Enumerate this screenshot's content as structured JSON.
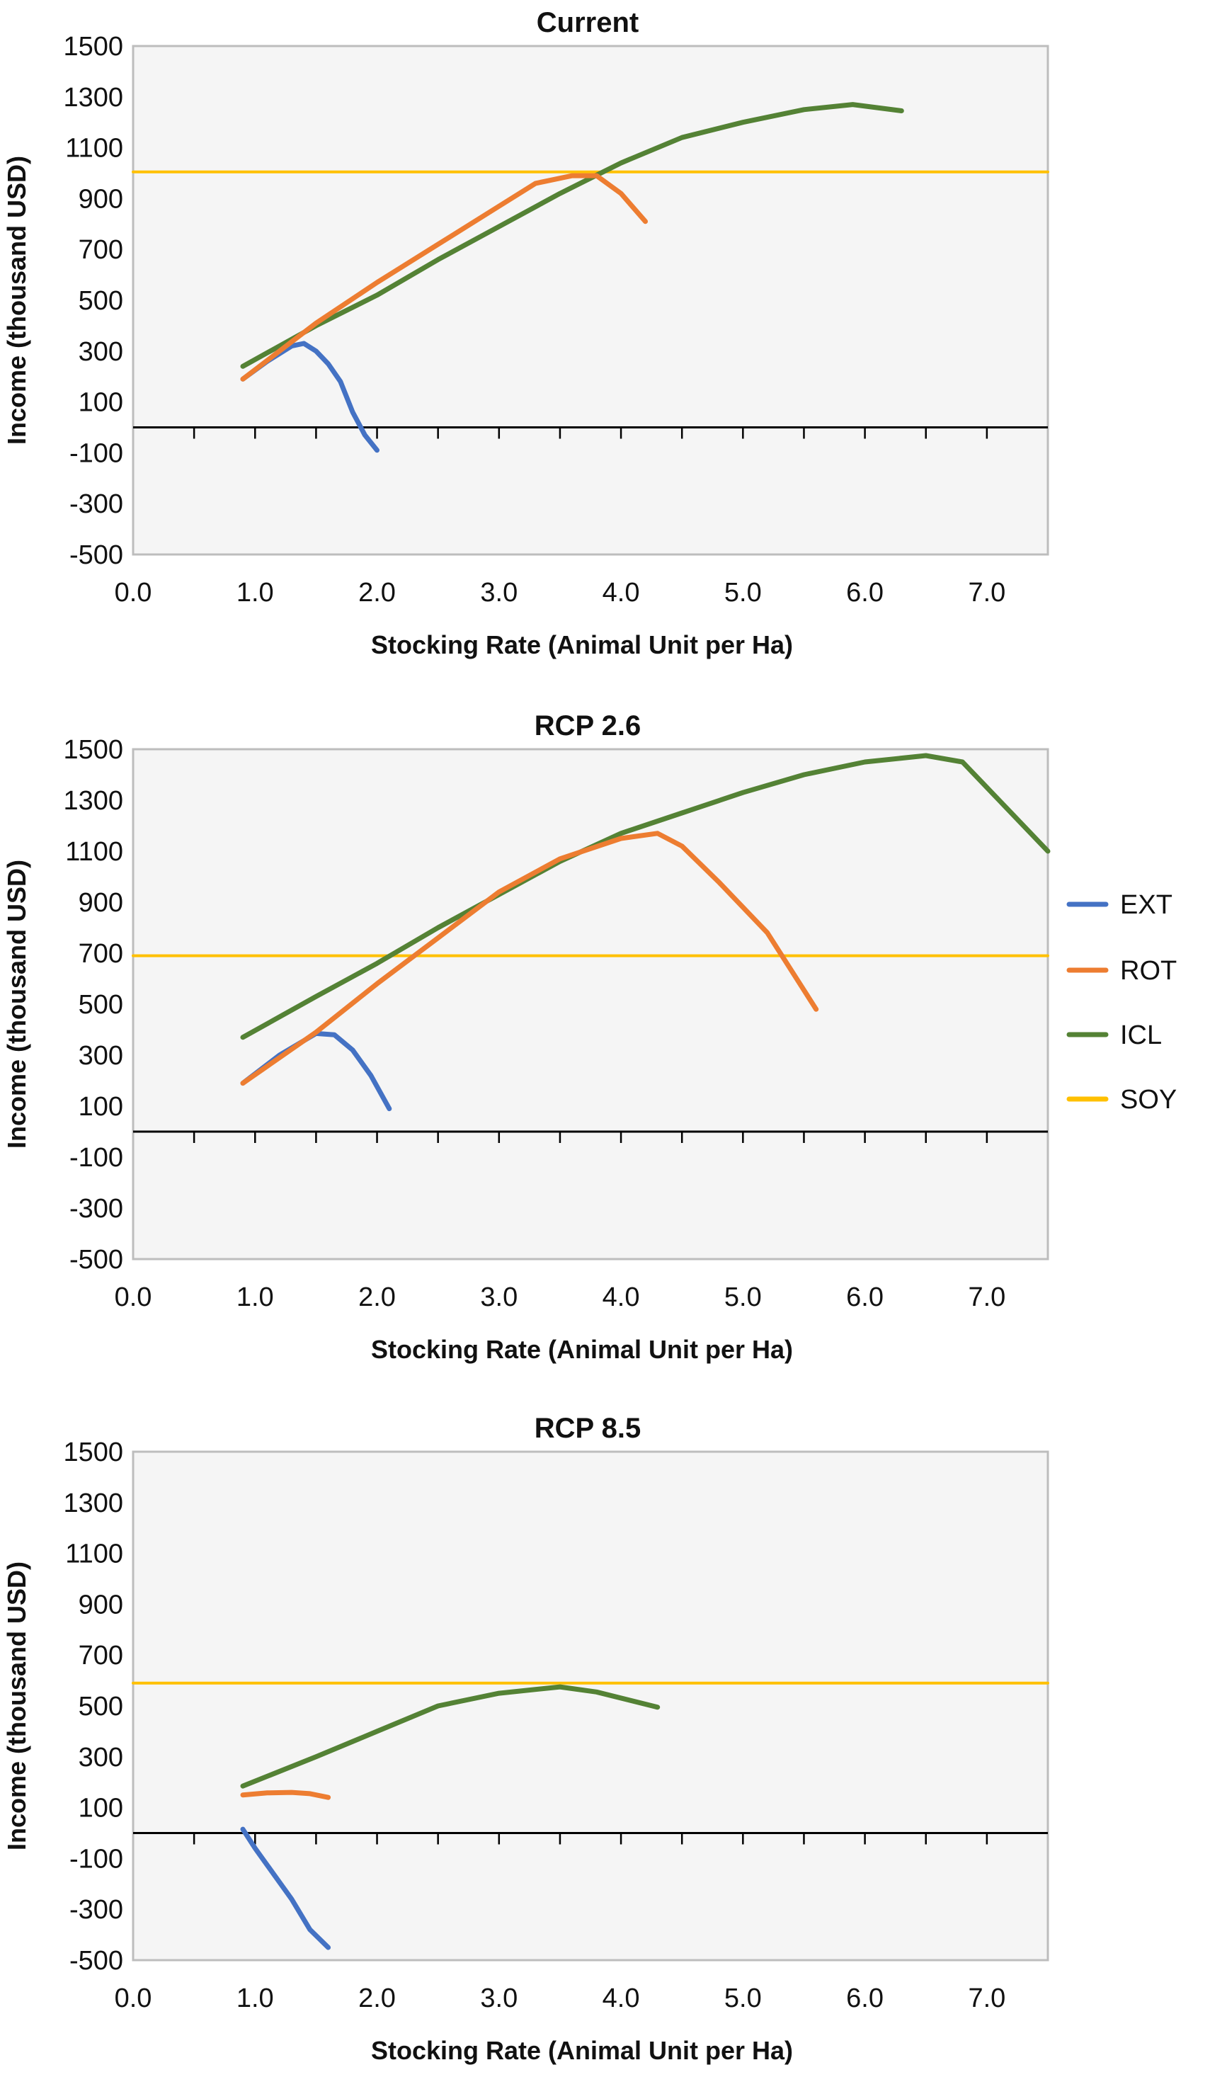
{
  "colors": {
    "plot_bg": "#f5f5f5",
    "plot_border": "#bdbdbd",
    "axis": "#000000",
    "EXT": "#4472C4",
    "ROT": "#ED7D31",
    "ICL": "#548235",
    "SOY": "#FFC000"
  },
  "legend": {
    "placement": "right",
    "items": [
      {
        "key": "EXT",
        "label": "EXT"
      },
      {
        "key": "ROT",
        "label": "ROT"
      },
      {
        "key": "ICL",
        "label": "ICL"
      },
      {
        "key": "SOY",
        "label": "SOY"
      }
    ]
  },
  "chart_data": [
    {
      "type": "line",
      "title": "Current",
      "xlabel": "Stocking Rate (Animal Unit per Ha)",
      "ylabel": "Income (thousand USD)",
      "xlim": [
        0,
        7.5
      ],
      "ylim": [
        -500,
        1500
      ],
      "xticks": [
        "0.0",
        "1.0",
        "2.0",
        "3.0",
        "4.0",
        "5.0",
        "6.0",
        "7.0"
      ],
      "yticks": [
        "1500",
        "1300",
        "1100",
        "900",
        "700",
        "500",
        "300",
        "100",
        "-100",
        "-300",
        "-500"
      ],
      "grid": false,
      "series": [
        {
          "name": "EXT",
          "x": [
            0.9,
            1.1,
            1.3,
            1.4,
            1.5,
            1.6,
            1.7,
            1.8,
            1.9,
            2.0
          ],
          "y": [
            190,
            260,
            320,
            330,
            300,
            250,
            180,
            60,
            -30,
            -90
          ]
        },
        {
          "name": "ROT",
          "x": [
            0.9,
            1.5,
            2.0,
            2.5,
            3.0,
            3.3,
            3.6,
            3.8,
            4.0,
            4.2
          ],
          "y": [
            190,
            410,
            570,
            720,
            870,
            960,
            990,
            990,
            920,
            810
          ]
        },
        {
          "name": "ICL",
          "x": [
            0.9,
            1.5,
            2.0,
            2.5,
            3.0,
            3.5,
            4.0,
            4.5,
            5.0,
            5.5,
            5.9,
            6.3
          ],
          "y": [
            240,
            400,
            520,
            660,
            790,
            920,
            1040,
            1140,
            1200,
            1250,
            1270,
            1245
          ]
        },
        {
          "name": "SOY",
          "x": [
            0,
            7.5
          ],
          "y": [
            1005,
            1005
          ]
        }
      ]
    },
    {
      "type": "line",
      "title": "RCP 2.6",
      "xlabel": "Stocking Rate (Animal Unit per Ha)",
      "ylabel": "Income (thousand USD)",
      "xlim": [
        0,
        7.5
      ],
      "ylim": [
        -500,
        1500
      ],
      "xticks": [
        "0.0",
        "1.0",
        "2.0",
        "3.0",
        "4.0",
        "5.0",
        "6.0",
        "7.0"
      ],
      "yticks": [
        "1500",
        "1300",
        "1100",
        "900",
        "700",
        "500",
        "300",
        "100",
        "-100",
        "-300",
        "-500"
      ],
      "grid": false,
      "series": [
        {
          "name": "EXT",
          "x": [
            0.9,
            1.2,
            1.5,
            1.65,
            1.8,
            1.95,
            2.1
          ],
          "y": [
            190,
            300,
            385,
            380,
            320,
            220,
            90
          ]
        },
        {
          "name": "ROT",
          "x": [
            0.9,
            1.5,
            2.0,
            2.5,
            3.0,
            3.5,
            4.0,
            4.3,
            4.5,
            4.8,
            5.2,
            5.6
          ],
          "y": [
            190,
            390,
            580,
            760,
            940,
            1070,
            1150,
            1170,
            1120,
            980,
            780,
            480
          ]
        },
        {
          "name": "ICL",
          "x": [
            0.9,
            1.5,
            2.0,
            2.5,
            3.0,
            3.5,
            4.0,
            4.5,
            5.0,
            5.5,
            6.0,
            6.5,
            6.8,
            7.1,
            7.5
          ],
          "y": [
            370,
            530,
            660,
            800,
            930,
            1060,
            1170,
            1250,
            1330,
            1400,
            1450,
            1475,
            1450,
            1300,
            1100
          ]
        },
        {
          "name": "SOY",
          "x": [
            0,
            7.5
          ],
          "y": [
            690,
            690
          ]
        }
      ]
    },
    {
      "type": "line",
      "title": "RCP 8.5",
      "xlabel": "Stocking Rate (Animal Unit per Ha)",
      "ylabel": "Income (thousand USD)",
      "xlim": [
        0,
        7.5
      ],
      "ylim": [
        -500,
        1500
      ],
      "xticks": [
        "0.0",
        "1.0",
        "2.0",
        "3.0",
        "4.0",
        "5.0",
        "6.0",
        "7.0"
      ],
      "yticks": [
        "1500",
        "1300",
        "1100",
        "900",
        "700",
        "500",
        "300",
        "100",
        "-100",
        "-300",
        "-500"
      ],
      "grid": false,
      "series": [
        {
          "name": "EXT",
          "x": [
            0.9,
            1.0,
            1.15,
            1.3,
            1.45,
            1.6
          ],
          "y": [
            15,
            -60,
            -160,
            -260,
            -380,
            -450
          ]
        },
        {
          "name": "ROT",
          "x": [
            0.9,
            1.1,
            1.3,
            1.45,
            1.6
          ],
          "y": [
            150,
            158,
            160,
            155,
            140
          ]
        },
        {
          "name": "ICL",
          "x": [
            0.9,
            1.5,
            2.0,
            2.5,
            3.0,
            3.5,
            3.8,
            4.3
          ],
          "y": [
            185,
            300,
            400,
            500,
            550,
            575,
            555,
            495
          ]
        },
        {
          "name": "SOY",
          "x": [
            0,
            7.5
          ],
          "y": [
            590,
            590
          ]
        }
      ]
    }
  ]
}
